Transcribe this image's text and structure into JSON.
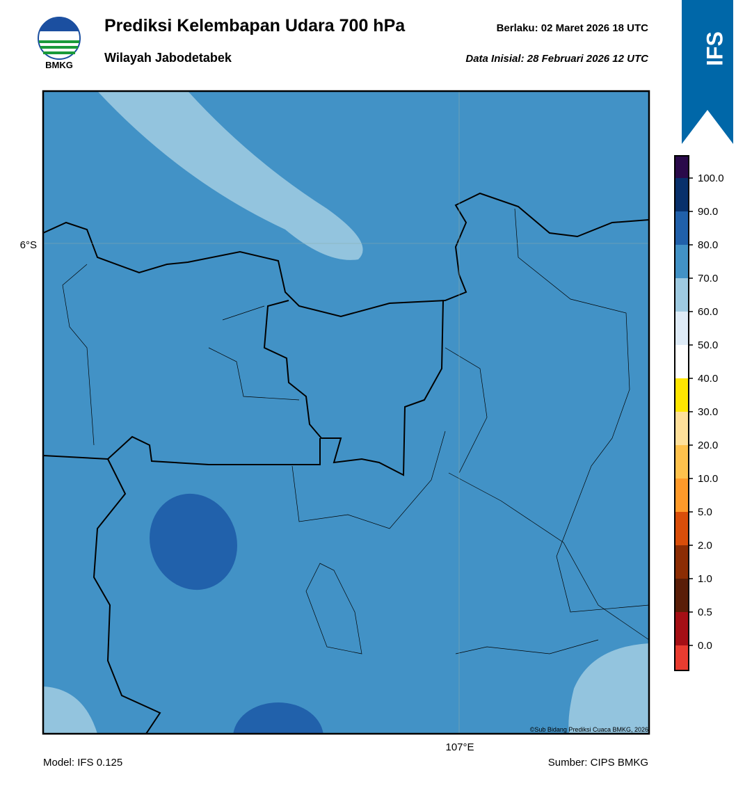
{
  "header": {
    "logo_text": "BMKG",
    "title": "Prediksi Kelembapan Udara 700 hPa",
    "subtitle": "Wilayah Jabodetabek",
    "valid": "Berlaku:  02 Maret 2026 18 UTC",
    "initial": "Data Inisial:  28 Februari 2026 12 UTC",
    "badge": "IFS"
  },
  "map": {
    "lat_label": "6°S",
    "lon_label": "107°E",
    "copyright": "©Sub Bidang Prediksi Cuaca BMKG, 2026"
  },
  "colorbar": {
    "ticks": [
      "0.0",
      "0.5",
      "1.0",
      "2.0",
      "5.0",
      "10.0",
      "20.0",
      "30.0",
      "40.0",
      "50.0",
      "60.0",
      "70.0",
      "80.0",
      "90.0",
      "100.0"
    ],
    "colors": [
      "#e83c30",
      "#a50f15",
      "#5a1e08",
      "#8c2d04",
      "#d94e0a",
      "#ff9a2a",
      "#ffc24d",
      "#ffe09a",
      "#ffe600",
      "#ffffff",
      "#deebf7",
      "#9ecae1",
      "#4292c6",
      "#2060aa",
      "#08306b",
      "#2a0a4a"
    ]
  },
  "footer": {
    "model": "Model: IFS 0.125",
    "source": "Sumber: CIPS BMKG"
  }
}
